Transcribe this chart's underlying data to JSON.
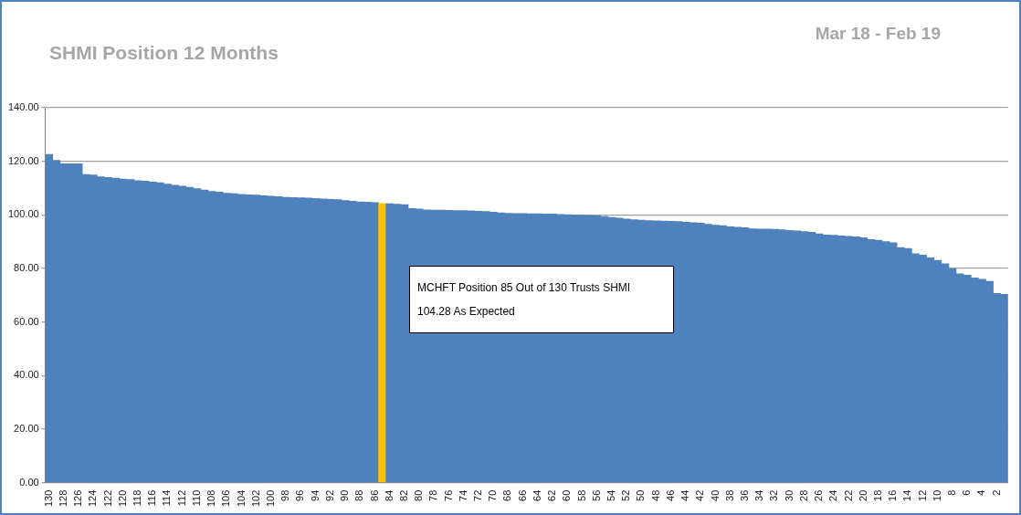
{
  "chart_data": {
    "type": "bar",
    "title": "SHMI Position 12 Months",
    "subtitle": "Mar 18 - Feb 19",
    "categories": [
      "130",
      null,
      "128",
      null,
      "126",
      null,
      "124",
      null,
      "122",
      null,
      "120",
      null,
      "118",
      null,
      "116",
      null,
      "114",
      null,
      "112",
      null,
      "110",
      null,
      "108",
      null,
      "106",
      null,
      "104",
      null,
      "102",
      null,
      "100",
      null,
      "98",
      null,
      "96",
      null,
      "94",
      null,
      "92",
      null,
      "90",
      null,
      "88",
      null,
      "86",
      null,
      "84",
      null,
      "82",
      null,
      "80",
      null,
      "78",
      null,
      "76",
      null,
      "74",
      null,
      "72",
      null,
      "70",
      null,
      "68",
      null,
      "66",
      null,
      "64",
      null,
      "62",
      null,
      "60",
      null,
      "58",
      null,
      "56",
      null,
      "54",
      null,
      "52",
      null,
      "50",
      null,
      "48",
      null,
      "46",
      null,
      "44",
      null,
      "42",
      null,
      "40",
      null,
      "38",
      null,
      "36",
      null,
      "34",
      null,
      "32",
      null,
      "30",
      null,
      "28",
      null,
      "26",
      null,
      "24",
      null,
      "22",
      null,
      "20",
      null,
      "18",
      null,
      "16",
      null,
      "14",
      null,
      "12",
      null,
      "10",
      null,
      "8",
      null,
      "6",
      null,
      "4",
      null,
      "2",
      null
    ],
    "values": [
      122.6,
      120.4,
      119.1,
      119.1,
      119.1,
      115.1,
      114.9,
      114.2,
      114.0,
      113.7,
      113.4,
      113.2,
      112.8,
      112.6,
      112.3,
      112.0,
      111.5,
      111.1,
      110.7,
      110.3,
      109.8,
      109.3,
      108.8,
      108.5,
      108.1,
      107.9,
      107.7,
      107.5,
      107.4,
      107.2,
      107.0,
      106.8,
      106.6,
      106.5,
      106.4,
      106.3,
      106.1,
      106.0,
      105.8,
      105.7,
      105.4,
      105.1,
      104.9,
      104.8,
      104.6,
      104.28,
      104.2,
      104.0,
      103.8,
      102.4,
      102.2,
      101.9,
      101.8,
      101.8,
      101.7,
      101.6,
      101.6,
      101.5,
      101.4,
      101.3,
      101.0,
      100.8,
      100.6,
      100.5,
      100.5,
      100.4,
      100.4,
      100.3,
      100.3,
      100.2,
      100.1,
      100.0,
      99.9,
      99.8,
      99.7,
      99.4,
      99.1,
      98.8,
      98.5,
      98.2,
      98.0,
      97.9,
      97.8,
      97.7,
      97.6,
      97.5,
      97.3,
      97.1,
      96.9,
      96.5,
      96.2,
      96.0,
      95.6,
      95.4,
      95.2,
      94.8,
      94.7,
      94.7,
      94.6,
      94.5,
      94.2,
      94.0,
      93.8,
      93.5,
      92.9,
      92.5,
      92.4,
      92.2,
      92.0,
      91.8,
      91.5,
      90.8,
      90.5,
      90.0,
      89.6,
      87.8,
      87.5,
      85.5,
      85.0,
      84.0,
      83.0,
      81.8,
      79.9,
      78.0,
      77.5,
      76.5,
      76.0,
      75.2,
      70.7,
      70.3
    ],
    "colors": [
      "#4f81bd",
      "#4f81bd",
      "#4f81bd",
      "#4f81bd",
      "#4f81bd",
      "#4f81bd",
      "#4f81bd",
      "#4f81bd",
      "#4f81bd",
      "#4f81bd",
      "#4f81bd",
      "#4f81bd",
      "#4f81bd",
      "#4f81bd",
      "#4f81bd",
      "#4f81bd",
      "#4f81bd",
      "#4f81bd",
      "#4f81bd",
      "#4f81bd",
      "#4f81bd",
      "#4f81bd",
      "#4f81bd",
      "#4f81bd",
      "#4f81bd",
      "#4f81bd",
      "#4f81bd",
      "#4f81bd",
      "#4f81bd",
      "#4f81bd",
      "#4f81bd",
      "#4f81bd",
      "#4f81bd",
      "#4f81bd",
      "#4f81bd",
      "#4f81bd",
      "#4f81bd",
      "#4f81bd",
      "#4f81bd",
      "#4f81bd",
      "#4f81bd",
      "#4f81bd",
      "#4f81bd",
      "#4f81bd",
      "#4f81bd",
      "#ffc000",
      "#4f81bd",
      "#4f81bd",
      "#4f81bd",
      "#4f81bd",
      "#4f81bd",
      "#4f81bd",
      "#4f81bd",
      "#4f81bd",
      "#4f81bd",
      "#4f81bd",
      "#4f81bd",
      "#4f81bd",
      "#4f81bd",
      "#4f81bd",
      "#4f81bd",
      "#4f81bd",
      "#4f81bd",
      "#4f81bd",
      "#4f81bd",
      "#4f81bd",
      "#4f81bd",
      "#4f81bd",
      "#4f81bd",
      "#4f81bd",
      "#4f81bd",
      "#4f81bd",
      "#4f81bd",
      "#4f81bd",
      "#4f81bd",
      "#4f81bd",
      "#4f81bd",
      "#4f81bd",
      "#4f81bd",
      "#4f81bd",
      "#4f81bd",
      "#4f81bd",
      "#4f81bd",
      "#4f81bd",
      "#4f81bd",
      "#4f81bd",
      "#4f81bd",
      "#4f81bd",
      "#4f81bd",
      "#4f81bd",
      "#4f81bd",
      "#4f81bd",
      "#4f81bd",
      "#4f81bd",
      "#4f81bd",
      "#4f81bd",
      "#4f81bd",
      "#4f81bd",
      "#4f81bd",
      "#4f81bd",
      "#4f81bd",
      "#4f81bd",
      "#4f81bd",
      "#4f81bd",
      "#4f81bd",
      "#4f81bd",
      "#4f81bd",
      "#4f81bd",
      "#4f81bd",
      "#4f81bd",
      "#4f81bd",
      "#4f81bd",
      "#4f81bd",
      "#4f81bd",
      "#4f81bd",
      "#4f81bd",
      "#4f81bd",
      "#4f81bd",
      "#4f81bd",
      "#4f81bd",
      "#4f81bd",
      "#4f81bd",
      "#4f81bd",
      "#4f81bd",
      "#4f81bd",
      "#4f81bd",
      "#4f81bd",
      "#4f81bd",
      "#4f81bd",
      "#4f81bd"
    ],
    "ylim": [
      0,
      140
    ],
    "yticks": [
      {
        "value": 0,
        "label": "0.00"
      },
      {
        "value": 20,
        "label": "20.00"
      },
      {
        "value": 40,
        "label": "40.00"
      },
      {
        "value": 60,
        "label": "60.00"
      },
      {
        "value": 80,
        "label": "80.00"
      },
      {
        "value": 100,
        "label": "100.00"
      },
      {
        "value": 120,
        "label": "120.00"
      },
      {
        "value": 140,
        "label": "140.00"
      }
    ],
    "grid": "y",
    "legend": false,
    "annotations": [
      "MCHFT Position 85 Out of 130 Trusts SHMI 104.28 As Expected"
    ]
  }
}
